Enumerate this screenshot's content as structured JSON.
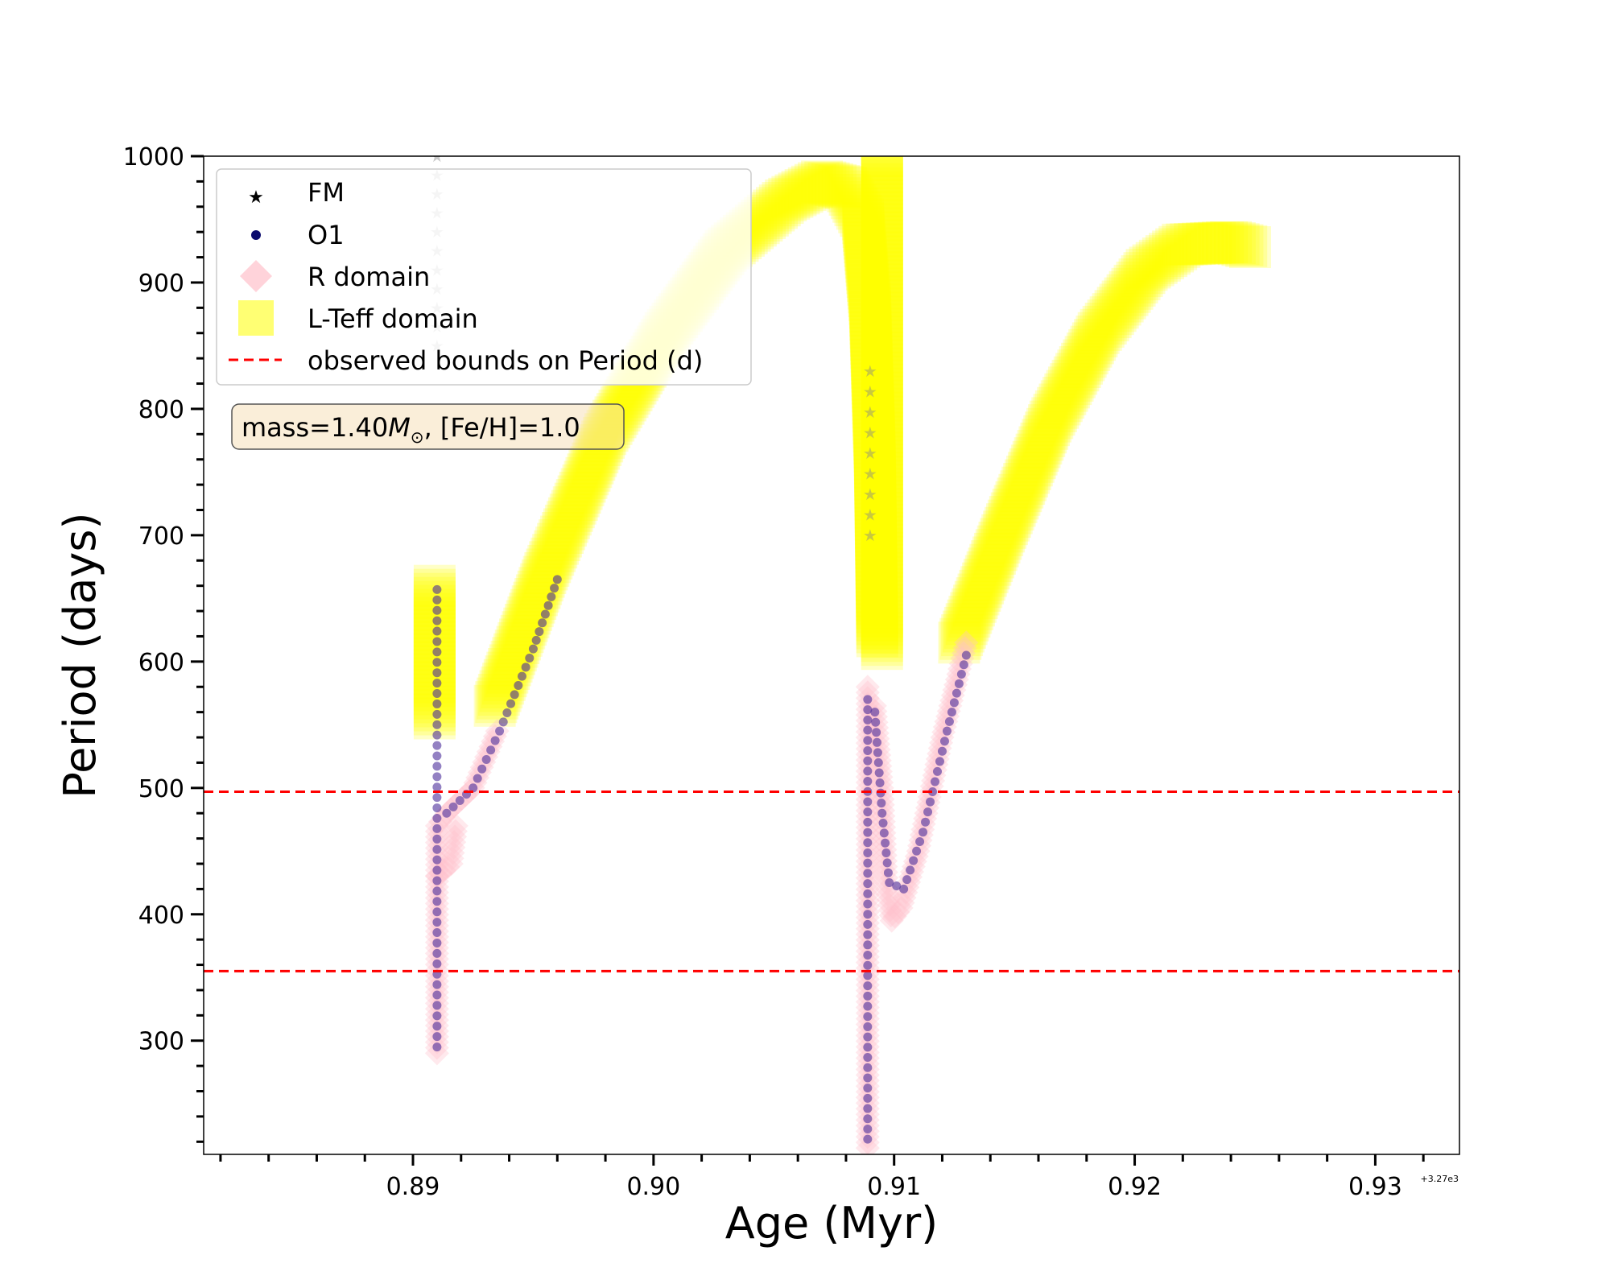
{
  "chart_data": {
    "type": "scatter",
    "xlabel": "Age (Myr)",
    "ylabel": "Period (days)",
    "x_offset_label": "+3.27e3",
    "xlim": [
      0.8813,
      0.9335
    ],
    "ylim": [
      210,
      1000
    ],
    "xticks": [
      0.89,
      0.9,
      0.91,
      0.92,
      0.93
    ],
    "xtick_labels": [
      "0.89",
      "0.90",
      "0.91",
      "0.92",
      "0.93"
    ],
    "yticks": [
      300,
      400,
      500,
      600,
      700,
      800,
      900,
      1000
    ],
    "ytick_labels": [
      "300",
      "400",
      "500",
      "600",
      "700",
      "800",
      "900",
      "1000"
    ],
    "annotation": {
      "prefix": "mass=1.40",
      "symbol": "M",
      "sub": "⊙",
      "suffix": ", [Fe/H]=1.0"
    },
    "legend": {
      "placement": "top-left",
      "entries": [
        {
          "label": "FM",
          "marker": "star",
          "color": "#000000"
        },
        {
          "label": "O1",
          "marker": "circle",
          "color": "#0b0b6e"
        },
        {
          "label": "R domain",
          "marker": "diamond",
          "color": "#ffc0cb"
        },
        {
          "label": "L-Teff domain",
          "marker": "square",
          "color": "#ffff00"
        },
        {
          "label": "observed bounds on Period (d)",
          "marker": "dashed-line",
          "color": "#ff0000"
        }
      ]
    },
    "observed_bounds": [
      355,
      497
    ],
    "series": [
      {
        "label": "L-Teff domain",
        "color": "#ffff00",
        "segments": [
          [
            [
              0.8909,
              555
            ],
            [
              0.8909,
              660
            ]
          ],
          [
            [
              0.8934,
              565
            ],
            [
              0.8955,
              670
            ],
            [
              0.898,
              780
            ],
            [
              0.9005,
              860
            ],
            [
              0.903,
              925
            ],
            [
              0.9055,
              965
            ],
            [
              0.907,
              980
            ],
            [
              0.908,
              975
            ],
            [
              0.9087,
              950
            ],
            [
              0.909,
              880
            ],
            [
              0.9092,
              760
            ],
            [
              0.9093,
              620
            ]
          ],
          [
            [
              0.9095,
              610
            ],
            [
              0.9095,
              1000
            ]
          ],
          [
            [
              0.9127,
              615
            ],
            [
              0.9145,
              700
            ],
            [
              0.9165,
              790
            ],
            [
              0.9185,
              860
            ],
            [
              0.9205,
              910
            ],
            [
              0.922,
              930
            ],
            [
              0.924,
              932
            ],
            [
              0.9248,
              928
            ]
          ]
        ]
      },
      {
        "label": "R domain",
        "color": "#ffc0cb",
        "segments": [
          [
            [
              0.891,
              290
            ],
            [
              0.891,
              470
            ],
            [
              0.8914,
              480
            ],
            [
              0.8925,
              500
            ],
            [
              0.8935,
              545
            ]
          ],
          [
            [
              0.891,
              430
            ],
            [
              0.8916,
              440
            ],
            [
              0.8918,
              470
            ]
          ],
          [
            [
              0.9089,
              215
            ],
            [
              0.9089,
              580
            ]
          ],
          [
            [
              0.9092,
              565
            ],
            [
              0.9095,
              500
            ],
            [
              0.9097,
              420
            ],
            [
              0.9099,
              395
            ],
            [
              0.9103,
              405
            ],
            [
              0.911,
              450
            ],
            [
              0.912,
              540
            ],
            [
              0.913,
              615
            ]
          ]
        ]
      },
      {
        "label": "O1",
        "color": "#4b2d9b",
        "segments": [
          [
            [
              0.891,
              295
            ],
            [
              0.891,
              657
            ]
          ],
          [
            [
              0.8914,
              480
            ],
            [
              0.8925,
              500
            ],
            [
              0.8936,
              545
            ],
            [
              0.895,
              610
            ],
            [
              0.896,
              665
            ]
          ],
          [
            [
              0.9089,
              222
            ],
            [
              0.9089,
              570
            ]
          ],
          [
            [
              0.9092,
              560
            ],
            [
              0.9095,
              480
            ],
            [
              0.9098,
              425
            ],
            [
              0.9104,
              420
            ],
            [
              0.9112,
              465
            ],
            [
              0.9122,
              545
            ],
            [
              0.913,
              605
            ]
          ]
        ]
      },
      {
        "label": "FM",
        "color": "#000000",
        "segments": [
          [
            [
              0.891,
              850
            ],
            [
              0.891,
              1000
            ]
          ],
          [
            [
              0.909,
              700
            ],
            [
              0.909,
              830
            ]
          ]
        ]
      }
    ]
  }
}
